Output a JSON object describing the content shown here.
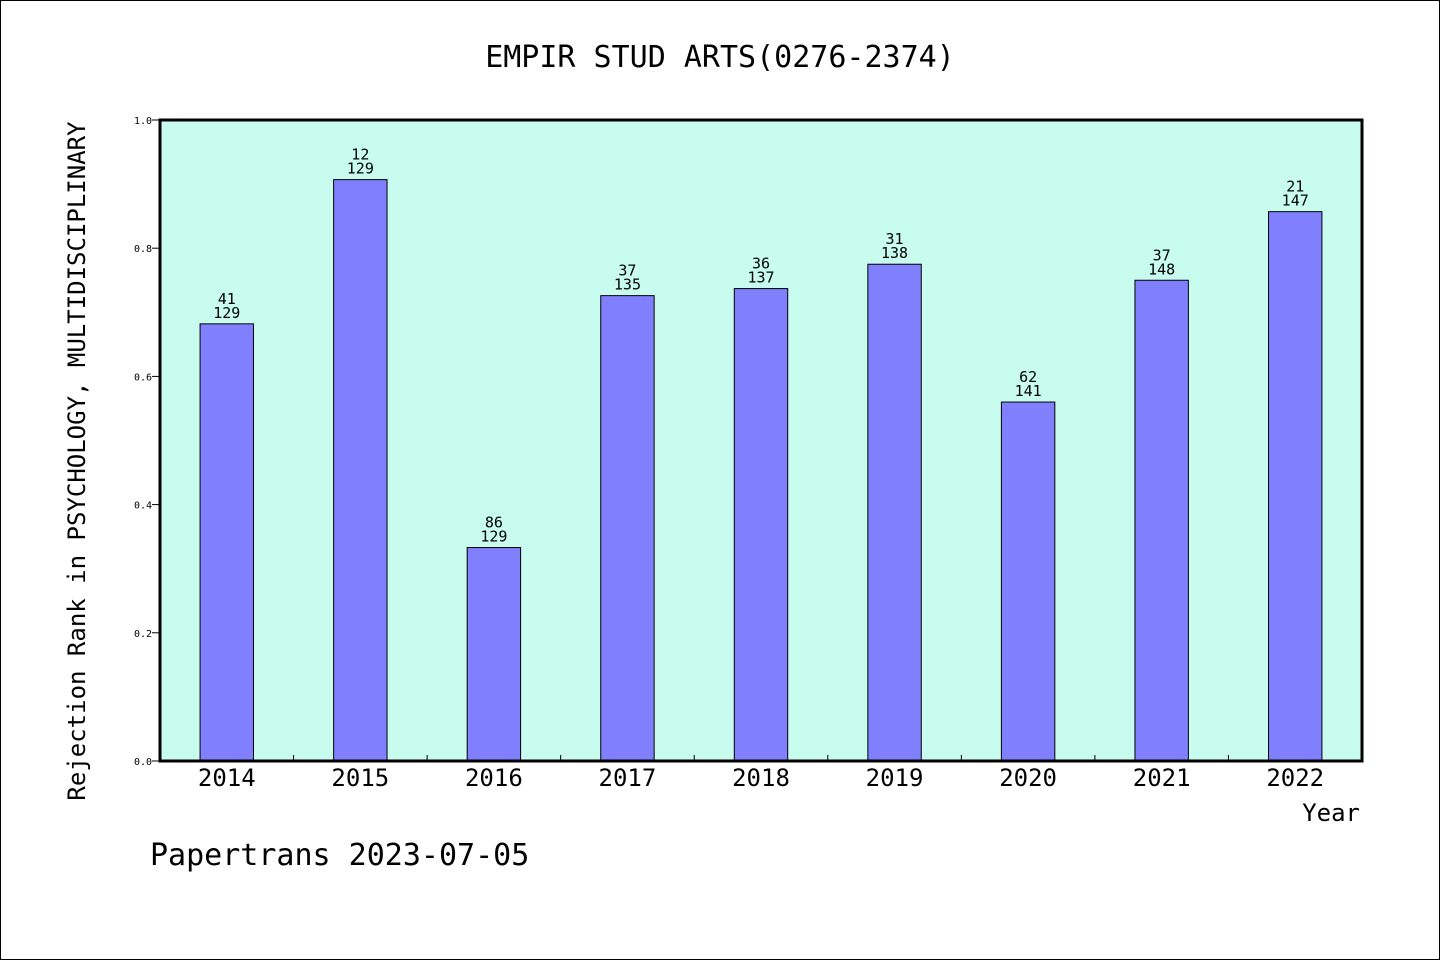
{
  "chart_data": {
    "type": "bar",
    "title": "EMPIR STUD ARTS(0276-2374)",
    "xlabel": "Year",
    "ylabel": "Rejection Rank in PSYCHOLOGY, MULTIDISCIPLINARY",
    "ylim": [
      0,
      1.0
    ],
    "yticks": [
      "0.0",
      "0.2",
      "0.4",
      "0.6",
      "0.8",
      "1.0"
    ],
    "categories": [
      "2014",
      "2015",
      "2016",
      "2017",
      "2018",
      "2019",
      "2020",
      "2021",
      "2022"
    ],
    "values": [
      0.682,
      0.907,
      0.333,
      0.726,
      0.737,
      0.775,
      0.56,
      0.75,
      0.857
    ],
    "ranks": [
      "41",
      "12",
      "86",
      "37",
      "36",
      "31",
      "62",
      "37",
      "21"
    ],
    "totals": [
      "129",
      "129",
      "129",
      "135",
      "137",
      "138",
      "141",
      "148",
      "147"
    ],
    "grid": false,
    "legend": "none",
    "colors": {
      "plot_bg": "#c8fcef",
      "bar": "#8080ff",
      "bar_edge": "#000000"
    }
  },
  "footer": "Papertrans 2023-07-05"
}
